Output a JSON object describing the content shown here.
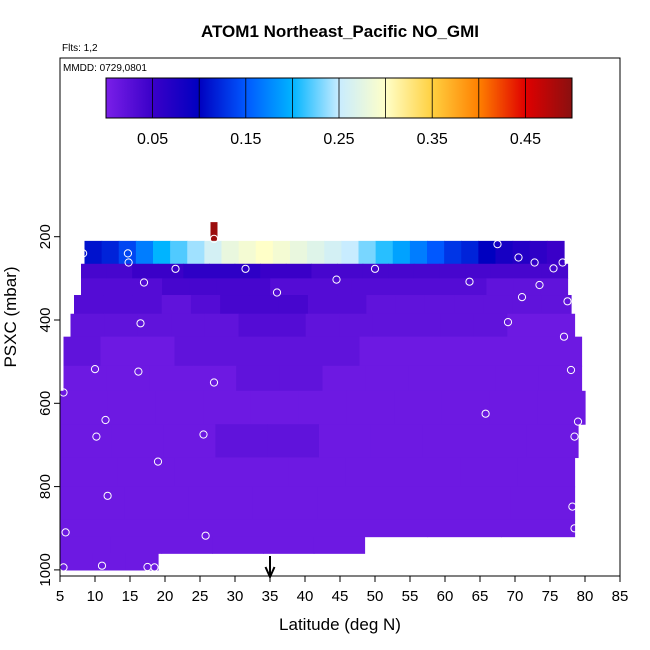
{
  "chart_data": {
    "type": "heatmap",
    "title": "ATOM1 Northeast_Pacific NO_GMI",
    "flights_note": "Flts: 1,2",
    "date_note": "MMDD: 0729,0801",
    "xlabel": "Latitude (deg N)",
    "ylabel": "PSXC (mbar)",
    "xlim": [
      5,
      85
    ],
    "ylim": [
      1000,
      0
    ],
    "xticks": [
      "5",
      "10",
      "15",
      "20",
      "25",
      "30",
      "35",
      "40",
      "45",
      "50",
      "55",
      "60",
      "65",
      "70",
      "75",
      "80",
      "85"
    ],
    "yticks": [
      "200",
      "400",
      "600",
      "800",
      "1000"
    ],
    "colorbar": {
      "range": [
        0,
        0.5
      ],
      "tick_labels": [
        "0.05",
        "0.15",
        "0.25",
        "0.35",
        "0.45"
      ],
      "tick_values": [
        0.05,
        0.15,
        0.25,
        0.35,
        0.45
      ]
    },
    "colors": {
      "stops": [
        "#7a1fe8",
        "#3a00c8",
        "#0000c0",
        "#0058ff",
        "#00b4ff",
        "#c8ecff",
        "#ffffc8",
        "#ffd040",
        "#ff8000",
        "#e00000",
        "#8a1010"
      ]
    },
    "bands": [
      {
        "p": [
          210,
          265
        ],
        "x": [
          8.5,
          77
        ],
        "cells": [
          0.11,
          0.12,
          0.14,
          0.17,
          0.2,
          0.22,
          0.24,
          0.26,
          0.28,
          0.29,
          0.3,
          0.29,
          0.28,
          0.27,
          0.26,
          0.25,
          0.23,
          0.21,
          0.19,
          0.17,
          0.15,
          0.13,
          0.12,
          0.1,
          0.08,
          0.07,
          0.06,
          0.05
        ]
      },
      {
        "p": [
          265,
          300
        ],
        "x": [
          8,
          77.5
        ],
        "cells": [
          0.04,
          0.04,
          0.05,
          0.05,
          0.06,
          0.06,
          0.06,
          0.05,
          0.05,
          0.04,
          0.04,
          0.04,
          0.04,
          0.04,
          0.04,
          0.04,
          0.04,
          0.04,
          0.04
        ]
      },
      {
        "p": [
          300,
          340
        ],
        "x": [
          8,
          77.5
        ],
        "cells": [
          0.03,
          0.03,
          0.03,
          0.04,
          0.04,
          0.04,
          0.04,
          0.03,
          0.03,
          0.03,
          0.03,
          0.03,
          0.03,
          0.03,
          0.03,
          0.02,
          0.02,
          0.02
        ]
      },
      {
        "p": [
          340,
          385
        ],
        "x": [
          7,
          78
        ],
        "cells": [
          0.03,
          0.03,
          0.03,
          0.02,
          0.03,
          0.04,
          0.04,
          0.04,
          0.03,
          0.03,
          0.02,
          0.02,
          0.02,
          0.02,
          0.02,
          0.02,
          0.02
        ]
      },
      {
        "p": [
          385,
          440
        ],
        "x": [
          6.5,
          78.5
        ],
        "cells": [
          0.02,
          0.02,
          0.02,
          0.02,
          0.02,
          0.03,
          0.03,
          0.02,
          0.02,
          0.02,
          0.02,
          0.02,
          0.02,
          0.01,
          0.01
        ]
      },
      {
        "p": [
          440,
          510
        ],
        "x": [
          5.5,
          79.5
        ],
        "cells": [
          0.02,
          0.01,
          0.01,
          0.02,
          0.02,
          0.02,
          0.02,
          0.02,
          0.01,
          0.01,
          0.01,
          0.01,
          0.01,
          0.01
        ]
      },
      {
        "p": [
          510,
          570
        ],
        "x": [
          5.5,
          79.5
        ],
        "cells": [
          0.01,
          0.01,
          0.01,
          0.01,
          0.02,
          0.02,
          0.01,
          0.01,
          0.01,
          0.01,
          0.01,
          0.01
        ]
      },
      {
        "p": [
          570,
          650
        ],
        "x": [
          5,
          80
        ],
        "cells": [
          0.01,
          0.01,
          0.01,
          0.01,
          0.01,
          0.01,
          0.01,
          0.01,
          0.01,
          0.01,
          0.01
        ]
      },
      {
        "p": [
          650,
          730
        ],
        "x": [
          5,
          79
        ],
        "cells": [
          0.01,
          0.01,
          0.01,
          0.02,
          0.02,
          0.01,
          0.01,
          0.01,
          0.01,
          0.01
        ]
      },
      {
        "p": [
          730,
          800
        ],
        "x": [
          5,
          78.5
        ],
        "cells": [
          0.01,
          0.01,
          0.01,
          0.01,
          0.01,
          0.01,
          0.01,
          0.01,
          0.01
        ]
      },
      {
        "p": [
          800,
          880
        ],
        "x": [
          5,
          78.5
        ],
        "cells": [
          0.01,
          0.01,
          0.01,
          0.01,
          0.01,
          0.01,
          0.01,
          0.01
        ]
      },
      {
        "p": [
          880,
          920
        ],
        "x": [
          5,
          78.5
        ],
        "cells": [
          0.01,
          0.01,
          0.01,
          0.01,
          0.01,
          0.01,
          0.01
        ]
      },
      {
        "p": [
          920,
          960
        ],
        "x": [
          5,
          48.5
        ],
        "cells": [
          0.01,
          0.01,
          0.01,
          0.01,
          0.01,
          0.01
        ]
      },
      {
        "p": [
          960,
          1000
        ],
        "x": [
          5,
          19
        ],
        "cells": [
          0.01,
          0.01,
          0.01
        ]
      }
    ],
    "high_cell": {
      "p": [
        165,
        210
      ],
      "x": [
        26.5,
        27.5
      ],
      "value": 0.49
    },
    "points": [
      [
        8.3,
        240
      ],
      [
        14.7,
        240
      ],
      [
        14.8,
        262
      ],
      [
        17,
        310
      ],
      [
        21.5,
        277
      ],
      [
        31.5,
        277
      ],
      [
        36,
        334
      ],
      [
        44.5,
        303
      ],
      [
        50,
        277
      ],
      [
        63.5,
        308
      ],
      [
        67.5,
        218
      ],
      [
        70.5,
        250
      ],
      [
        72.8,
        262
      ],
      [
        75.5,
        276
      ],
      [
        76.8,
        262
      ],
      [
        77.5,
        355
      ],
      [
        73.5,
        316
      ],
      [
        71,
        345
      ],
      [
        69,
        405
      ],
      [
        27,
        205
      ],
      [
        16.5,
        408
      ],
      [
        10,
        518
      ],
      [
        16.2,
        524
      ],
      [
        27,
        550
      ],
      [
        5.5,
        574
      ],
      [
        11.5,
        640
      ],
      [
        10.2,
        680
      ],
      [
        25.5,
        675
      ],
      [
        19,
        740
      ],
      [
        11.8,
        822
      ],
      [
        5.8,
        910
      ],
      [
        25.8,
        918
      ],
      [
        5.5,
        994
      ],
      [
        11,
        990
      ],
      [
        17.5,
        993
      ],
      [
        18.5,
        994
      ],
      [
        77,
        440
      ],
      [
        78,
        520
      ],
      [
        65.8,
        625
      ],
      [
        79,
        644
      ],
      [
        78.5,
        680
      ],
      [
        78.2,
        848
      ],
      [
        78.5,
        900
      ]
    ],
    "arrow_latitude": 35
  }
}
